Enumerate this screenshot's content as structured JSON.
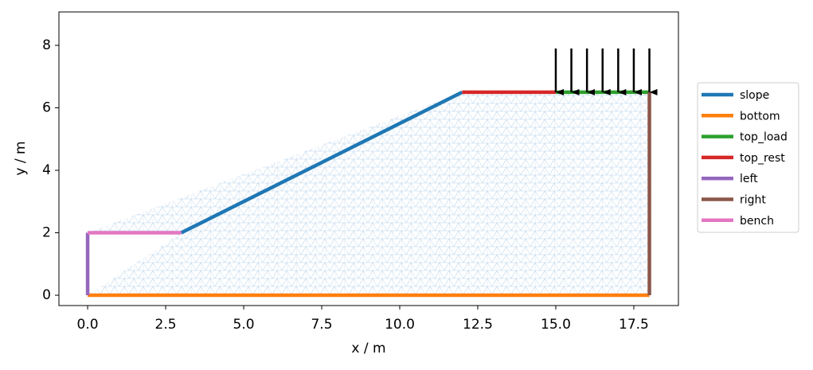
{
  "chart_data": {
    "type": "line",
    "xlabel": "x / m",
    "ylabel": "y / m",
    "xlim": [
      -0.92,
      18.93
    ],
    "ylim": [
      -0.33,
      9.07
    ],
    "xticks": [
      {
        "value": 0,
        "label": "0.0"
      },
      2.5,
      {
        "value": 5,
        "label": "5.0"
      },
      7.5,
      {
        "value": 10,
        "label": "10.0"
      },
      12.5,
      {
        "value": 15,
        "label": "15.0"
      },
      17.5
    ],
    "yticks": [
      0,
      2,
      4,
      6,
      8
    ],
    "grid": false,
    "legend": "outside right",
    "series": [
      {
        "name": "slope",
        "color": "#1f77b4",
        "x": [
          3,
          12
        ],
        "y": [
          2,
          6.5
        ]
      },
      {
        "name": "bottom",
        "color": "#ff7f0e",
        "x": [
          0,
          18
        ],
        "y": [
          0,
          0
        ]
      },
      {
        "name": "top_load",
        "color": "#2ca02c",
        "x": [
          15,
          18
        ],
        "y": [
          6.5,
          6.5
        ]
      },
      {
        "name": "top_rest",
        "color": "#d62728",
        "x": [
          12,
          15
        ],
        "y": [
          6.5,
          6.5
        ]
      },
      {
        "name": "left",
        "color": "#9467bd",
        "x": [
          0,
          0
        ],
        "y": [
          0,
          2
        ]
      },
      {
        "name": "right",
        "color": "#8c564b",
        "x": [
          18,
          18
        ],
        "y": [
          0,
          6.5
        ]
      },
      {
        "name": "bench",
        "color": "#e377c2",
        "x": [
          0,
          3
        ],
        "y": [
          2,
          2
        ]
      }
    ],
    "load_arrows": {
      "x": [
        15,
        15.5,
        16,
        16.5,
        17,
        17.5,
        18
      ],
      "y_from": 7.9,
      "y_to": 6.5,
      "color": "#000000"
    }
  }
}
